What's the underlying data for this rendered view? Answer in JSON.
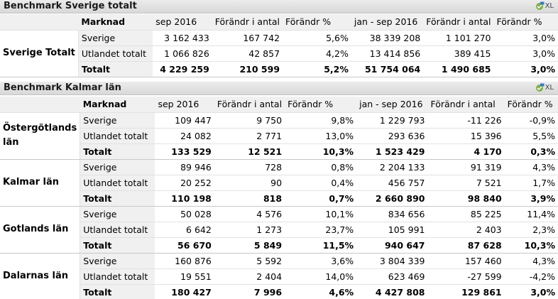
{
  "panels": [
    {
      "title": "Benchmark Sverige totalt",
      "export_label": "XL",
      "columns": [
        "Marknad",
        "sep 2016",
        "Förändr i antal",
        "Förändr %",
        "jan - sep 2016",
        "Förändr i antal",
        "Förändr %"
      ],
      "groups": [
        {
          "region": "Sverige Totalt",
          "rows": [
            {
              "market": "Sverige",
              "sep": "3 162 433",
              "chg": "167 742",
              "pct": "5,6%",
              "ytd": "38 339 208",
              "ytd_chg": "1 101 270",
              "ytd_pct": "3,0%"
            },
            {
              "market": "Utlandet totalt",
              "sep": "1 066 826",
              "chg": "42 857",
              "pct": "4,2%",
              "ytd": "13 414 856",
              "ytd_chg": "389 415",
              "ytd_pct": "3,0%"
            },
            {
              "market": "Totalt",
              "sep": "4 229 259",
              "chg": "210 599",
              "pct": "5,2%",
              "ytd": "51 754 064",
              "ytd_chg": "1 490 685",
              "ytd_pct": "3,0%"
            }
          ]
        }
      ]
    },
    {
      "title": "Benchmark Kalmar län",
      "export_label": "XL",
      "columns": [
        "Marknad",
        "sep 2016",
        "Förändr i antal",
        "Förändr %",
        "jan - sep 2016",
        "Förändr i antal",
        "Förändr %"
      ],
      "groups": [
        {
          "region": "Östergötlands län",
          "rows": [
            {
              "market": "Sverige",
              "sep": "109 447",
              "chg": "9 750",
              "pct": "9,8%",
              "ytd": "1 229 793",
              "ytd_chg": "-11 226",
              "ytd_pct": "-0,9%"
            },
            {
              "market": "Utlandet totalt",
              "sep": "24 082",
              "chg": "2 771",
              "pct": "13,0%",
              "ytd": "293 636",
              "ytd_chg": "15 396",
              "ytd_pct": "5,5%"
            },
            {
              "market": "Totalt",
              "sep": "133 529",
              "chg": "12 521",
              "pct": "10,3%",
              "ytd": "1 523 429",
              "ytd_chg": "4 170",
              "ytd_pct": "0,3%"
            }
          ]
        },
        {
          "region": "Kalmar län",
          "rows": [
            {
              "market": "Sverige",
              "sep": "89 946",
              "chg": "728",
              "pct": "0,8%",
              "ytd": "2 204 133",
              "ytd_chg": "91 319",
              "ytd_pct": "4,3%"
            },
            {
              "market": "Utlandet totalt",
              "sep": "20 252",
              "chg": "90",
              "pct": "0,4%",
              "ytd": "456 757",
              "ytd_chg": "7 521",
              "ytd_pct": "1,7%"
            },
            {
              "market": "Totalt",
              "sep": "110 198",
              "chg": "818",
              "pct": "0,7%",
              "ytd": "2 660 890",
              "ytd_chg": "98 840",
              "ytd_pct": "3,9%"
            }
          ]
        },
        {
          "region": "Gotlands län",
          "rows": [
            {
              "market": "Sverige",
              "sep": "50 028",
              "chg": "4 576",
              "pct": "10,1%",
              "ytd": "834 656",
              "ytd_chg": "85 225",
              "ytd_pct": "11,4%"
            },
            {
              "market": "Utlandet totalt",
              "sep": "6 642",
              "chg": "1 273",
              "pct": "23,7%",
              "ytd": "105 991",
              "ytd_chg": "2 403",
              "ytd_pct": "2,3%"
            },
            {
              "market": "Totalt",
              "sep": "56 670",
              "chg": "5 849",
              "pct": "11,5%",
              "ytd": "940 647",
              "ytd_chg": "87 628",
              "ytd_pct": "10,3%"
            }
          ]
        },
        {
          "region": "Dalarnas län",
          "rows": [
            {
              "market": "Sverige",
              "sep": "160 876",
              "chg": "5 592",
              "pct": "3,6%",
              "ytd": "3 804 339",
              "ytd_chg": "157 460",
              "ytd_pct": "4,3%"
            },
            {
              "market": "Utlandet totalt",
              "sep": "19 551",
              "chg": "2 404",
              "pct": "14,0%",
              "ytd": "623 469",
              "ytd_chg": "-27 599",
              "ytd_pct": "-4,2%"
            },
            {
              "market": "Totalt",
              "sep": "180 427",
              "chg": "7 996",
              "pct": "4,6%",
              "ytd": "4 427 808",
              "ytd_chg": "129 861",
              "ytd_pct": "3,0%"
            }
          ]
        }
      ]
    }
  ]
}
